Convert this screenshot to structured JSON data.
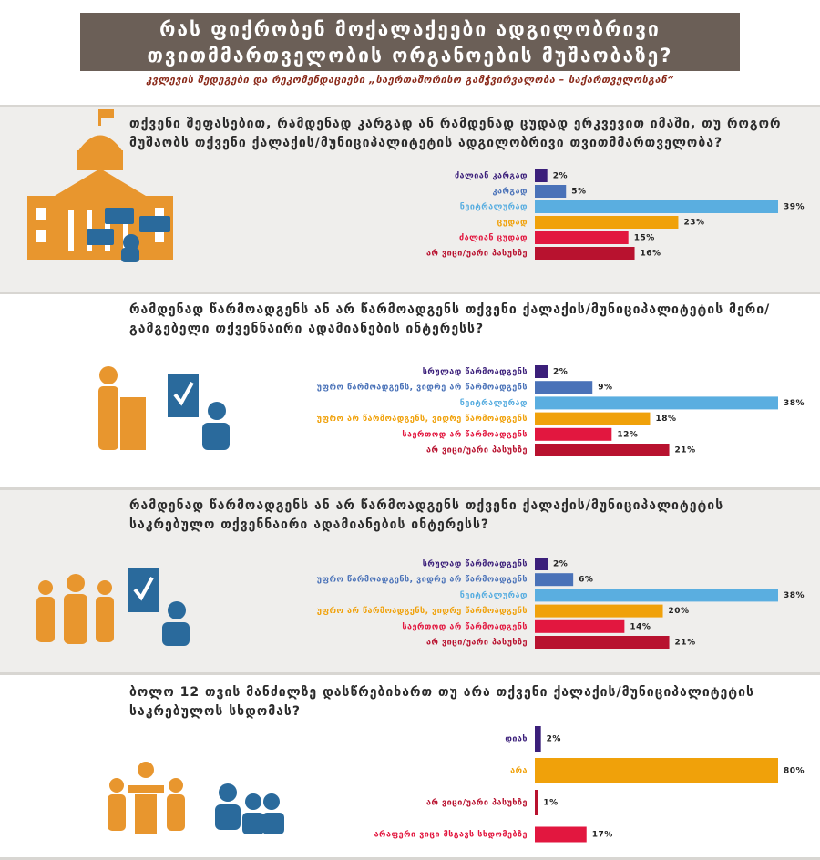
{
  "header": {
    "title": "რას ფიქრობენ მოქალაქეები ადგილობრივი თვითმმართველობის ორგანოების მუშაობაზე?",
    "subtitle": "კვლევის შედეგები და რეკომენდაციები „საერთაშორისო გამჭვირვალობა – საქართველოსგან“"
  },
  "chart_data": [
    {
      "type": "bar",
      "title": "თქვენი შეფასებით, რამდენად კარგად ან რამდენად ცუდად ერკვევით იმაში, თუ როგორ მუშაობს თქვენი ქალაქის/მუნიციპალიტეტის ადგილობრივი თვითმმართველობა?",
      "categories": [
        "ძალიან კარგად",
        "კარგად",
        "ნეიტრალურად",
        "ცუდად",
        "ძალიან ცუდად",
        "არ ვიცი/უარი პასუხზე"
      ],
      "values": [
        2,
        5,
        39,
        23,
        15,
        16
      ],
      "value_labels": [
        "2%",
        "5%",
        "39%",
        "23%",
        "15%",
        "16%"
      ],
      "colors": [
        "#3b1f7a",
        "#4a72b8",
        "#5aaee0",
        "#f0a10a",
        "#e2173f",
        "#b8122f"
      ]
    },
    {
      "type": "bar",
      "title": "რამდენად წარმოადგენს ან არ წარმოადგენს თქვენი ქალაქის/მუნიციპალიტეტის მერი/გამგებელი თქვენნაირი ადამიანების ინტერესს?",
      "categories": [
        "სრულად წარმოადგენს",
        "უფრო წარმოადგენს, ვიდრე არ წარმოადგენს",
        "ნეიტრალურად",
        "უფრო არ წარმოადგენს, ვიდრე წარმოადგენს",
        "საერთოდ არ წარმოადგენს",
        "არ ვიცი/უარი პასუხზე"
      ],
      "values": [
        2,
        9,
        38,
        18,
        12,
        21
      ],
      "value_labels": [
        "2%",
        "9%",
        "38%",
        "18%",
        "12%",
        "21%"
      ],
      "colors": [
        "#3b1f7a",
        "#4a72b8",
        "#5aaee0",
        "#f0a10a",
        "#e2173f",
        "#b8122f"
      ]
    },
    {
      "type": "bar",
      "title": "რამდენად წარმოადგენს ან არ წარმოადგენს თქვენი ქალაქის/მუნიციპალიტეტის საკრებულო თქვენნაირი ადამიანების ინტერესს?",
      "categories": [
        "სრულად წარმოადგენს",
        "უფრო წარმოადგენს, ვიდრე არ წარმოადგენს",
        "ნეიტრალურად",
        "უფრო არ წარმოადგენს, ვიდრე წარმოადგენს",
        "საერთოდ არ წარმოადგენს",
        "არ ვიცი/უარი პასუხზე"
      ],
      "values": [
        2,
        6,
        38,
        20,
        14,
        21
      ],
      "value_labels": [
        "2%",
        "6%",
        "38%",
        "20%",
        "14%",
        "21%"
      ],
      "colors": [
        "#3b1f7a",
        "#4a72b8",
        "#5aaee0",
        "#f0a10a",
        "#e2173f",
        "#b8122f"
      ]
    },
    {
      "type": "bar",
      "title": "ბოლო 12 თვის მანძილზე დასწრებიხართ თუ არა თქვენი ქალაქის/მუნიციპალიტეტის საკრებულოს სხდომას?",
      "categories": [
        "დიახ",
        "არა",
        "არ ვიცი/უარი პასუხზე",
        "არაფერი ვიცი მსგავს სხდომებზე"
      ],
      "values": [
        2,
        80,
        1,
        17
      ],
      "value_labels": [
        "2%",
        "80%",
        "1%",
        "17%"
      ],
      "colors": [
        "#3b1f7a",
        "#f0a10a",
        "#b8122f",
        "#e2173f"
      ]
    }
  ]
}
